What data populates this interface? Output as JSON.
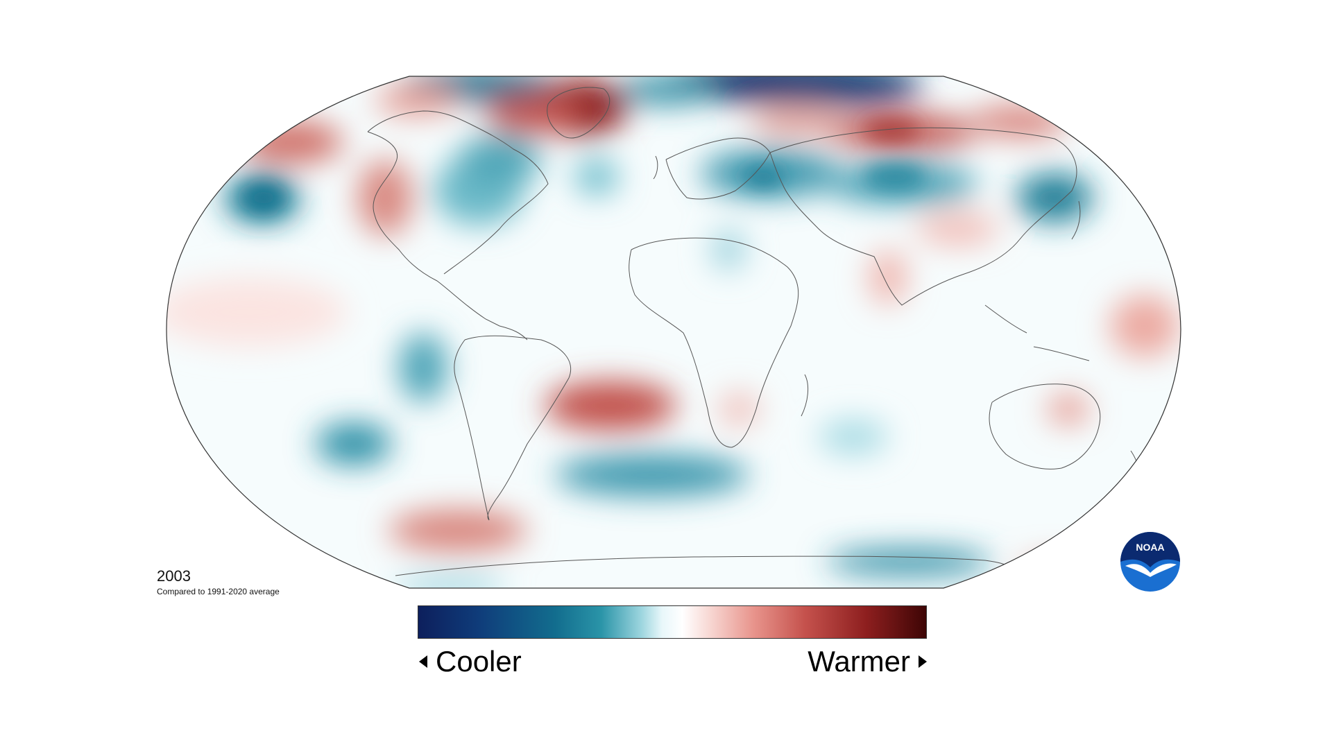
{
  "map": {
    "year": "2003",
    "subtitle": "Compared to 1991-2020 average",
    "projection": "Robinson",
    "layer": "temperature anomaly",
    "border_color": "#333333",
    "coast_color": "#555555",
    "border_lines_color": "#aaaaaa"
  },
  "legend": {
    "cooler_label": "Cooler",
    "warmer_label": "Warmer",
    "cooler_icon": "left-triangle-icon",
    "warmer_icon": "right-triangle-icon",
    "colors": [
      "#0d1f5c",
      "#0f3c7a",
      "#126d8e",
      "#2a94a8",
      "#9ed6df",
      "#e8f7fa",
      "#ffffff",
      "#f8dad6",
      "#e8948c",
      "#c5524d",
      "#8e1f1f",
      "#3d0505"
    ]
  },
  "logo": {
    "text": "NOAA",
    "icon": "noaa-logo-icon",
    "color": "#0a4fa0"
  }
}
